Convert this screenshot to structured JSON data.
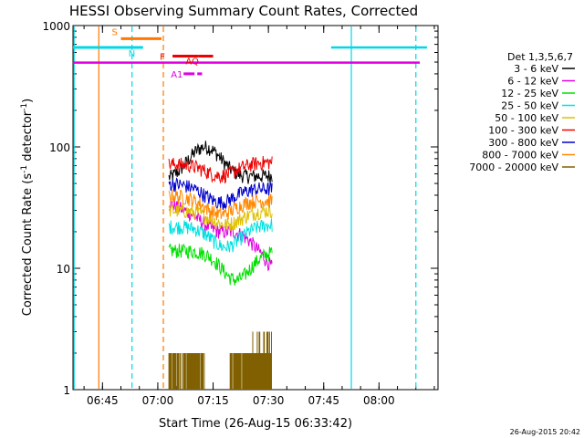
{
  "chart_data": {
    "type": "line",
    "title": "HESSI Observing Summary Count Rates, Corrected",
    "xlabel": "Start Time (26-Aug-15 06:33:42)",
    "ylabel_main": "Corrected Count Rate (s",
    "ylabel_sup1": "-1",
    "ylabel_mid": " detector",
    "ylabel_sup2": "-1",
    "ylabel_end": ")",
    "yscale": "log",
    "ylim": [
      1,
      1000
    ],
    "xlim_minutes": [
      397,
      496
    ],
    "x_ticks": [
      {
        "label": "06:45",
        "minute": 405
      },
      {
        "label": "07:00",
        "minute": 420
      },
      {
        "label": "07:15",
        "minute": 435
      },
      {
        "label": "07:30",
        "minute": 450
      },
      {
        "label": "07:45",
        "minute": 465
      },
      {
        "label": "08:00",
        "minute": 480
      }
    ],
    "y_ticks": [
      {
        "label": "1",
        "value": 1
      },
      {
        "label": "10",
        "value": 10
      },
      {
        "label": "100",
        "value": 100
      },
      {
        "label": "1000",
        "value": 1000
      }
    ],
    "legend_title": "Det 1,3,5,6,7",
    "legend_position": "right",
    "series": [
      {
        "name": "3 - 6 keV",
        "color": "#000000",
        "start": 54,
        "end": 58,
        "peak": 100,
        "peak_at": 0.35
      },
      {
        "name": "6 - 12 keV",
        "color": "#e000e0",
        "start": 34,
        "end": 10,
        "dip": 20,
        "dip_at": 0.55
      },
      {
        "name": "12 - 25 keV",
        "color": "#00e000",
        "start": 14,
        "end": 14,
        "dip": 8,
        "dip_at": 0.65
      },
      {
        "name": "25 - 50 keV",
        "color": "#00e0e0",
        "start": 22,
        "end": 23,
        "dip": 15,
        "dip_at": 0.55
      },
      {
        "name": "50 - 100 keV",
        "color": "#e0c000",
        "start": 30,
        "end": 30,
        "dip": 23,
        "dip_at": 0.55
      },
      {
        "name": "100 - 300 keV",
        "color": "#ee0000",
        "start": 72,
        "end": 75,
        "dip": 58,
        "dip_at": 0.5
      },
      {
        "name": "300 - 800 keV",
        "color": "#0000cc",
        "start": 50,
        "end": 45,
        "dip": 35,
        "dip_at": 0.5
      },
      {
        "name": "800 - 7000 keV",
        "color": "#ff8800",
        "start": 40,
        "end": 36,
        "dip": 28,
        "dip_at": 0.5
      },
      {
        "name": "7000 - 20000 keV",
        "color": "#806000",
        "start": 2,
        "end": 2
      }
    ],
    "data_window_minutes": [
      423,
      451
    ],
    "annotations": [
      {
        "label": "S",
        "color": "#ff7700",
        "y": 780,
        "x0": 410,
        "x1": 421
      },
      {
        "label": "N",
        "color": "#00d8e8",
        "y": 660,
        "x0": 397,
        "x1": 416
      },
      {
        "label": "F",
        "color": "#ee0000",
        "y": 560,
        "x0": 424,
        "x1": 431
      },
      {
        "label": "AQ",
        "color": "#ee0000",
        "y": 560,
        "x0": 431,
        "x1": 435
      },
      {
        "label": "A1",
        "color": "#e000e0",
        "y": 400,
        "x0": 427,
        "x1": 432
      }
    ],
    "attenuator_line": {
      "color": "#e000e0",
      "y": 495
    },
    "night_right": {
      "color": "#00d8e8",
      "y": 660,
      "x0": 467,
      "x1": 493
    },
    "vlines": [
      {
        "minute": 397.3,
        "color": "#00d8e8",
        "dashed": false
      },
      {
        "minute": 404,
        "color": "#ff7700",
        "dashed": false
      },
      {
        "minute": 413,
        "color": "#00d8e8",
        "dashed": true
      },
      {
        "minute": 421.5,
        "color": "#ff7700",
        "dashed": true
      },
      {
        "minute": 472.5,
        "color": "#00d8e8",
        "dashed": false
      },
      {
        "minute": 490,
        "color": "#00d8e8",
        "dashed": true
      }
    ],
    "gridlines": false
  },
  "footer_date": "26-Aug-2015 20:42"
}
